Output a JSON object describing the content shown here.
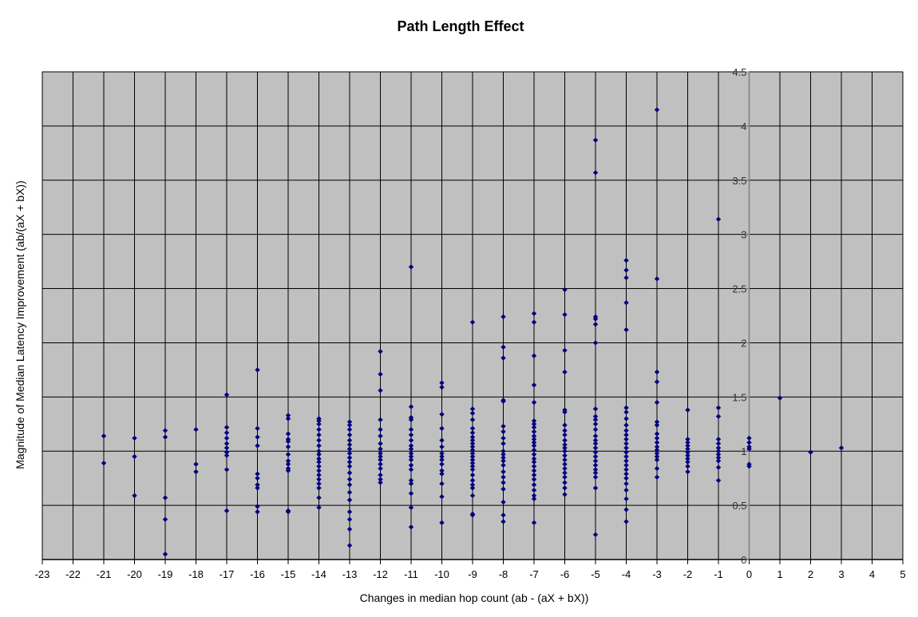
{
  "chart_data": {
    "type": "scatter",
    "title": "Path Length Effect",
    "xlabel": "Changes in median hop count (ab - (aX + bX))",
    "ylabel": "Magnitude of Median Latency Improvement (ab/(aX + bX))",
    "xlim": [
      -23,
      5
    ],
    "ylim": [
      0,
      4.5
    ],
    "x_ticks": [
      -23,
      -22,
      -21,
      -20,
      -19,
      -18,
      -17,
      -16,
      -15,
      -14,
      -13,
      -12,
      -11,
      -10,
      -9,
      -8,
      -7,
      -6,
      -5,
      -4,
      -3,
      -2,
      -1,
      0,
      1,
      2,
      3,
      4,
      5
    ],
    "y_ticks": [
      0,
      0.5,
      1,
      1.5,
      2,
      2.5,
      3,
      3.5,
      4,
      4.5
    ],
    "grid": true,
    "marker_color": "#000080",
    "plot_background": "#c0c0c0",
    "series": [
      {
        "points": [
          [
            -21,
            1.14
          ],
          [
            -21,
            0.89
          ],
          [
            -20,
            1.12
          ],
          [
            -20,
            0.95
          ],
          [
            -20,
            0.59
          ],
          [
            -19,
            1.19
          ],
          [
            -19,
            1.13
          ],
          [
            -19,
            0.57
          ],
          [
            -19,
            0.37
          ],
          [
            -19,
            0.05
          ],
          [
            -18,
            1.2
          ],
          [
            -18,
            0.88
          ],
          [
            -18,
            0.81
          ],
          [
            -17,
            1.52
          ],
          [
            -17,
            1.22
          ],
          [
            -17,
            1.17
          ],
          [
            -17,
            1.12
          ],
          [
            -17,
            1.07
          ],
          [
            -17,
            1.03
          ],
          [
            -17,
            0.99
          ],
          [
            -17,
            0.96
          ],
          [
            -17,
            0.83
          ],
          [
            -17,
            0.45
          ],
          [
            -16,
            1.75
          ],
          [
            -16,
            1.21
          ],
          [
            -16,
            1.13
          ],
          [
            -16,
            1.05
          ],
          [
            -16,
            0.79
          ],
          [
            -16,
            0.75
          ],
          [
            -16,
            0.69
          ],
          [
            -16,
            0.66
          ],
          [
            -16,
            0.49
          ],
          [
            -16,
            0.44
          ],
          [
            -15,
            1.33
          ],
          [
            -15,
            1.3
          ],
          [
            -15,
            1.16
          ],
          [
            -15,
            1.11
          ],
          [
            -15,
            1.09
          ],
          [
            -15,
            1.04
          ],
          [
            -15,
            0.97
          ],
          [
            -15,
            0.91
          ],
          [
            -15,
            0.88
          ],
          [
            -15,
            0.84
          ],
          [
            -15,
            0.82
          ],
          [
            -15,
            0.45
          ],
          [
            -15,
            0.44
          ],
          [
            -14,
            1.3
          ],
          [
            -14,
            1.28
          ],
          [
            -14,
            1.25
          ],
          [
            -14,
            1.2
          ],
          [
            -14,
            1.15
          ],
          [
            -14,
            1.1
          ],
          [
            -14,
            1.05
          ],
          [
            -14,
            1.0
          ],
          [
            -14,
            0.97
          ],
          [
            -14,
            0.93
          ],
          [
            -14,
            0.9
          ],
          [
            -14,
            0.86
          ],
          [
            -14,
            0.82
          ],
          [
            -14,
            0.78
          ],
          [
            -14,
            0.74
          ],
          [
            -14,
            0.7
          ],
          [
            -14,
            0.66
          ],
          [
            -14,
            0.57
          ],
          [
            -14,
            0.48
          ],
          [
            -13,
            1.27
          ],
          [
            -13,
            1.24
          ],
          [
            -13,
            1.2
          ],
          [
            -13,
            1.15
          ],
          [
            -13,
            1.1
          ],
          [
            -13,
            1.06
          ],
          [
            -13,
            1.02
          ],
          [
            -13,
            0.98
          ],
          [
            -13,
            0.94
          ],
          [
            -13,
            0.9
          ],
          [
            -13,
            0.86
          ],
          [
            -13,
            0.8
          ],
          [
            -13,
            0.74
          ],
          [
            -13,
            0.69
          ],
          [
            -13,
            0.62
          ],
          [
            -13,
            0.55
          ],
          [
            -13,
            0.44
          ],
          [
            -13,
            0.37
          ],
          [
            -13,
            0.28
          ],
          [
            -13,
            0.13
          ],
          [
            -12,
            1.92
          ],
          [
            -12,
            1.71
          ],
          [
            -12,
            1.56
          ],
          [
            -12,
            1.29
          ],
          [
            -12,
            1.2
          ],
          [
            -12,
            1.14
          ],
          [
            -12,
            1.07
          ],
          [
            -12,
            1.02
          ],
          [
            -12,
            0.98
          ],
          [
            -12,
            0.95
          ],
          [
            -12,
            0.92
          ],
          [
            -12,
            0.88
          ],
          [
            -12,
            0.84
          ],
          [
            -12,
            0.78
          ],
          [
            -12,
            0.74
          ],
          [
            -12,
            0.71
          ],
          [
            -11,
            2.7
          ],
          [
            -11,
            1.41
          ],
          [
            -11,
            1.31
          ],
          [
            -11,
            1.29
          ],
          [
            -11,
            1.2
          ],
          [
            -11,
            1.15
          ],
          [
            -11,
            1.1
          ],
          [
            -11,
            1.05
          ],
          [
            -11,
            1.02
          ],
          [
            -11,
            0.98
          ],
          [
            -11,
            0.95
          ],
          [
            -11,
            0.92
          ],
          [
            -11,
            0.87
          ],
          [
            -11,
            0.83
          ],
          [
            -11,
            0.73
          ],
          [
            -11,
            0.7
          ],
          [
            -11,
            0.61
          ],
          [
            -11,
            0.48
          ],
          [
            -11,
            0.3
          ],
          [
            -10,
            1.63
          ],
          [
            -10,
            1.59
          ],
          [
            -10,
            1.34
          ],
          [
            -10,
            1.21
          ],
          [
            -10,
            1.1
          ],
          [
            -10,
            1.04
          ],
          [
            -10,
            0.98
          ],
          [
            -10,
            0.95
          ],
          [
            -10,
            0.92
          ],
          [
            -10,
            0.88
          ],
          [
            -10,
            0.82
          ],
          [
            -10,
            0.79
          ],
          [
            -10,
            0.7
          ],
          [
            -10,
            0.58
          ],
          [
            -10,
            0.34
          ],
          [
            -9,
            2.19
          ],
          [
            -9,
            1.39
          ],
          [
            -9,
            1.35
          ],
          [
            -9,
            1.29
          ],
          [
            -9,
            1.21
          ],
          [
            -9,
            1.17
          ],
          [
            -9,
            1.13
          ],
          [
            -9,
            1.1
          ],
          [
            -9,
            1.07
          ],
          [
            -9,
            1.04
          ],
          [
            -9,
            1.01
          ],
          [
            -9,
            0.98
          ],
          [
            -9,
            0.95
          ],
          [
            -9,
            0.92
          ],
          [
            -9,
            0.89
          ],
          [
            -9,
            0.86
          ],
          [
            -9,
            0.83
          ],
          [
            -9,
            0.78
          ],
          [
            -9,
            0.73
          ],
          [
            -9,
            0.69
          ],
          [
            -9,
            0.66
          ],
          [
            -9,
            0.59
          ],
          [
            -9,
            0.42
          ],
          [
            -9,
            0.41
          ],
          [
            -8,
            2.24
          ],
          [
            -8,
            1.96
          ],
          [
            -8,
            1.86
          ],
          [
            -8,
            1.47
          ],
          [
            -8,
            1.46
          ],
          [
            -8,
            1.23
          ],
          [
            -8,
            1.18
          ],
          [
            -8,
            1.12
          ],
          [
            -8,
            1.07
          ],
          [
            -8,
            1.0
          ],
          [
            -8,
            0.97
          ],
          [
            -8,
            0.94
          ],
          [
            -8,
            0.91
          ],
          [
            -8,
            0.87
          ],
          [
            -8,
            0.81
          ],
          [
            -8,
            0.76
          ],
          [
            -8,
            0.71
          ],
          [
            -8,
            0.65
          ],
          [
            -8,
            0.53
          ],
          [
            -8,
            0.41
          ],
          [
            -8,
            0.35
          ],
          [
            -7,
            2.27
          ],
          [
            -7,
            2.19
          ],
          [
            -7,
            1.88
          ],
          [
            -7,
            1.61
          ],
          [
            -7,
            1.45
          ],
          [
            -7,
            1.28
          ],
          [
            -7,
            1.25
          ],
          [
            -7,
            1.22
          ],
          [
            -7,
            1.18
          ],
          [
            -7,
            1.14
          ],
          [
            -7,
            1.11
          ],
          [
            -7,
            1.08
          ],
          [
            -7,
            1.05
          ],
          [
            -7,
            1.01
          ],
          [
            -7,
            0.97
          ],
          [
            -7,
            0.93
          ],
          [
            -7,
            0.9
          ],
          [
            -7,
            0.86
          ],
          [
            -7,
            0.82
          ],
          [
            -7,
            0.78
          ],
          [
            -7,
            0.74
          ],
          [
            -7,
            0.69
          ],
          [
            -7,
            0.64
          ],
          [
            -7,
            0.59
          ],
          [
            -7,
            0.56
          ],
          [
            -7,
            0.34
          ],
          [
            -6,
            2.49
          ],
          [
            -6,
            2.26
          ],
          [
            -6,
            1.93
          ],
          [
            -6,
            1.73
          ],
          [
            -6,
            1.38
          ],
          [
            -6,
            1.36
          ],
          [
            -6,
            1.24
          ],
          [
            -6,
            1.19
          ],
          [
            -6,
            1.15
          ],
          [
            -6,
            1.1
          ],
          [
            -6,
            1.06
          ],
          [
            -6,
            1.03
          ],
          [
            -6,
            1.0
          ],
          [
            -6,
            0.96
          ],
          [
            -6,
            0.92
          ],
          [
            -6,
            0.88
          ],
          [
            -6,
            0.84
          ],
          [
            -6,
            0.8
          ],
          [
            -6,
            0.76
          ],
          [
            -6,
            0.71
          ],
          [
            -6,
            0.66
          ],
          [
            -6,
            0.6
          ],
          [
            -5,
            3.87
          ],
          [
            -5,
            3.57
          ],
          [
            -5,
            2.24
          ],
          [
            -5,
            2.22
          ],
          [
            -5,
            2.17
          ],
          [
            -5,
            2.0
          ],
          [
            -5,
            1.39
          ],
          [
            -5,
            1.32
          ],
          [
            -5,
            1.29
          ],
          [
            -5,
            1.25
          ],
          [
            -5,
            1.2
          ],
          [
            -5,
            1.14
          ],
          [
            -5,
            1.1
          ],
          [
            -5,
            1.07
          ],
          [
            -5,
            1.03
          ],
          [
            -5,
            0.99
          ],
          [
            -5,
            0.95
          ],
          [
            -5,
            0.91
          ],
          [
            -5,
            0.87
          ],
          [
            -5,
            0.83
          ],
          [
            -5,
            0.8
          ],
          [
            -5,
            0.76
          ],
          [
            -5,
            0.66
          ],
          [
            -5,
            0.23
          ],
          [
            -4,
            2.76
          ],
          [
            -4,
            2.67
          ],
          [
            -4,
            2.6
          ],
          [
            -4,
            2.37
          ],
          [
            -4,
            2.12
          ],
          [
            -4,
            1.4
          ],
          [
            -4,
            1.36
          ],
          [
            -4,
            1.3
          ],
          [
            -4,
            1.24
          ],
          [
            -4,
            1.19
          ],
          [
            -4,
            1.15
          ],
          [
            -4,
            1.11
          ],
          [
            -4,
            1.07
          ],
          [
            -4,
            1.03
          ],
          [
            -4,
            0.99
          ],
          [
            -4,
            0.95
          ],
          [
            -4,
            0.91
          ],
          [
            -4,
            0.87
          ],
          [
            -4,
            0.83
          ],
          [
            -4,
            0.79
          ],
          [
            -4,
            0.75
          ],
          [
            -4,
            0.7
          ],
          [
            -4,
            0.64
          ],
          [
            -4,
            0.56
          ],
          [
            -4,
            0.46
          ],
          [
            -4,
            0.35
          ],
          [
            -3,
            4.15
          ],
          [
            -3,
            2.59
          ],
          [
            -3,
            1.73
          ],
          [
            -3,
            1.64
          ],
          [
            -3,
            1.45
          ],
          [
            -3,
            1.27
          ],
          [
            -3,
            1.24
          ],
          [
            -3,
            1.16
          ],
          [
            -3,
            1.12
          ],
          [
            -3,
            1.08
          ],
          [
            -3,
            1.04
          ],
          [
            -3,
            1.01
          ],
          [
            -3,
            0.98
          ],
          [
            -3,
            0.95
          ],
          [
            -3,
            0.92
          ],
          [
            -3,
            0.84
          ],
          [
            -3,
            0.76
          ],
          [
            -2,
            1.38
          ],
          [
            -2,
            1.11
          ],
          [
            -2,
            1.08
          ],
          [
            -2,
            1.05
          ],
          [
            -2,
            1.02
          ],
          [
            -2,
            0.99
          ],
          [
            -2,
            0.96
          ],
          [
            -2,
            0.93
          ],
          [
            -2,
            0.9
          ],
          [
            -2,
            0.86
          ],
          [
            -2,
            0.81
          ],
          [
            -1,
            3.14
          ],
          [
            -1,
            1.4
          ],
          [
            -1,
            1.32
          ],
          [
            -1,
            1.11
          ],
          [
            -1,
            1.07
          ],
          [
            -1,
            1.03
          ],
          [
            -1,
            1.0
          ],
          [
            -1,
            0.97
          ],
          [
            -1,
            0.94
          ],
          [
            -1,
            0.91
          ],
          [
            -1,
            0.85
          ],
          [
            -1,
            0.73
          ],
          [
            0,
            1.12
          ],
          [
            0,
            1.08
          ],
          [
            0,
            1.04
          ],
          [
            0,
            1.02
          ],
          [
            0,
            0.88
          ],
          [
            0,
            0.86
          ],
          [
            1,
            1.49
          ],
          [
            2,
            0.99
          ],
          [
            3,
            1.03
          ]
        ]
      }
    ]
  }
}
